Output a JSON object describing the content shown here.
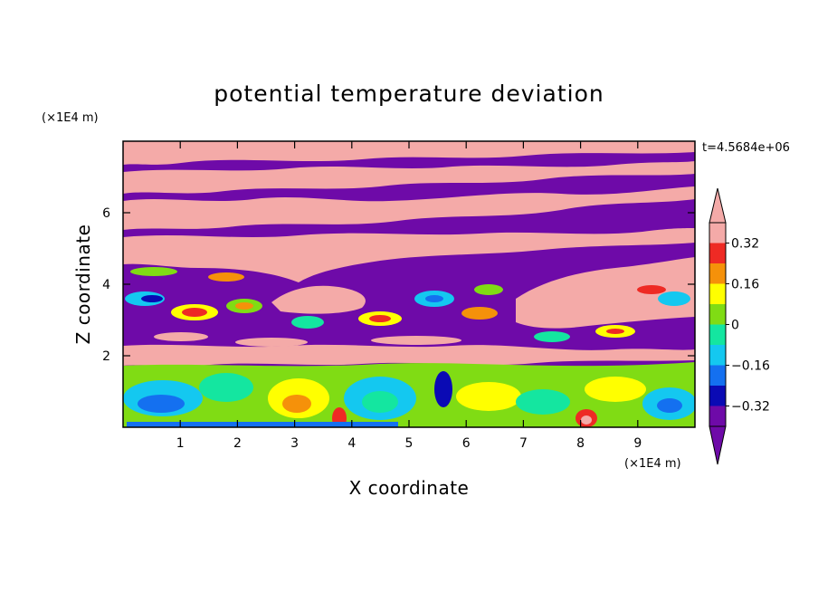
{
  "chart_data": {
    "type": "heatmap",
    "title": "potential temperature deviation",
    "xlabel": "X coordinate",
    "ylabel": "Z coordinate",
    "x_unit": "(×1E4 m)",
    "y_unit": "(×1E4 m)",
    "time_label": "t=4.5684e+06",
    "xlim": [
      0,
      10
    ],
    "ylim": [
      0,
      8
    ],
    "x_ticks": [
      "1",
      "2",
      "3",
      "4",
      "5",
      "6",
      "7",
      "8",
      "9"
    ],
    "x_tick_values": [
      1,
      2,
      3,
      4,
      5,
      6,
      7,
      8,
      9
    ],
    "y_ticks": [
      "2",
      "4",
      "6"
    ],
    "y_tick_values": [
      2,
      4,
      6
    ],
    "colorbar": {
      "labels": [
        "0.32",
        "0.16",
        "0",
        "−0.16",
        "−0.32"
      ],
      "label_values": [
        0.32,
        0.16,
        0,
        -0.16,
        -0.32
      ],
      "range": [
        -0.4,
        0.4
      ],
      "extend": "both",
      "levels": [
        {
          "from": 0.32,
          "to": 0.4,
          "color": "#f4aaa8"
        },
        {
          "from": 0.24,
          "to": 0.32,
          "color": "#ee2a24"
        },
        {
          "from": 0.16,
          "to": 0.24,
          "color": "#f5910a"
        },
        {
          "from": 0.08,
          "to": 0.16,
          "color": "#ffff00"
        },
        {
          "from": 0.0,
          "to": 0.08,
          "color": "#80dc14"
        },
        {
          "from": -0.08,
          "to": 0.0,
          "color": "#14e6a0"
        },
        {
          "from": -0.16,
          "to": -0.08,
          "color": "#14c8f0"
        },
        {
          "from": -0.24,
          "to": -0.16,
          "color": "#1470f0"
        },
        {
          "from": -0.32,
          "to": -0.24,
          "color": "#0a0ab4"
        },
        {
          "from": -0.4,
          "to": -0.32,
          "color": "#6e0aa8"
        }
      ],
      "extend_max_color": "#f4aaa8",
      "extend_min_color": "#6e0aa8"
    },
    "regions": [
      {
        "name": "top layer",
        "z_range": [
          6.0,
          8.0
        ],
        "pattern": "alternating bands",
        "colors": [
          "#6e0aa8",
          "#f4aaa8"
        ]
      },
      {
        "name": "upper turbulent layer",
        "z_range": [
          2.0,
          6.0
        ],
        "pattern": "mixed purple and pink with full-spectrum eddies"
      },
      {
        "name": "lower convective layer",
        "z_range": [
          0.0,
          1.7
        ],
        "pattern": "green, yellow and cyan cells",
        "colors": [
          "#80dc14",
          "#ffff00",
          "#14c8f0",
          "#14e6a0"
        ]
      }
    ]
  }
}
